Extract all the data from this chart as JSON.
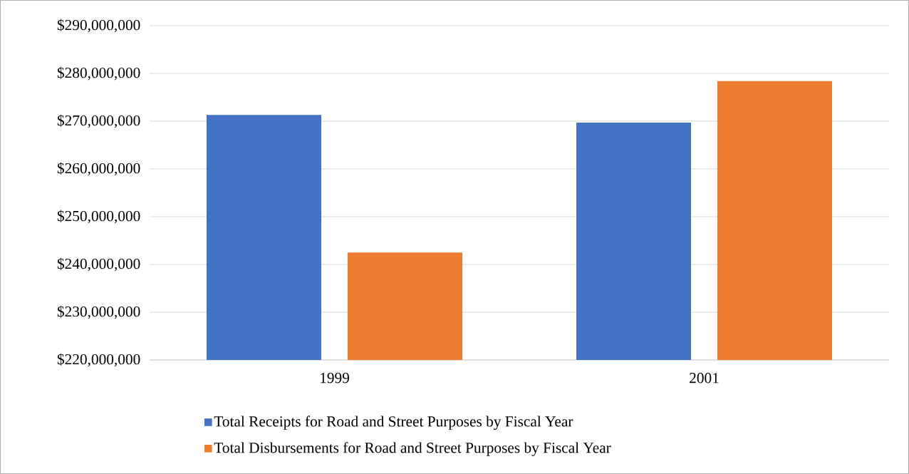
{
  "chart_data": {
    "type": "bar",
    "categories": [
      "1999",
      "2001"
    ],
    "series": [
      {
        "name": "Total Receipts for Road and Street Purposes by Fiscal Year",
        "color": "#4472c4",
        "values": [
          271300000,
          269700000
        ]
      },
      {
        "name": "Total Disbursements for Road and Street Purposes by Fiscal Year",
        "color": "#ed7d31",
        "values": [
          242500000,
          278400000
        ]
      }
    ],
    "ylim": [
      220000000,
      290000000
    ],
    "yticks": [
      {
        "value": 220000000,
        "label": "$220,000,000"
      },
      {
        "value": 230000000,
        "label": "$230,000,000"
      },
      {
        "value": 240000000,
        "label": "$240,000,000"
      },
      {
        "value": 250000000,
        "label": "$250,000,000"
      },
      {
        "value": 260000000,
        "label": "$260,000,000"
      },
      {
        "value": 270000000,
        "label": "$270,000,000"
      },
      {
        "value": 280000000,
        "label": "$280,000,000"
      },
      {
        "value": 290000000,
        "label": "$290,000,000"
      }
    ],
    "grid": "y",
    "legend": "bottom"
  }
}
